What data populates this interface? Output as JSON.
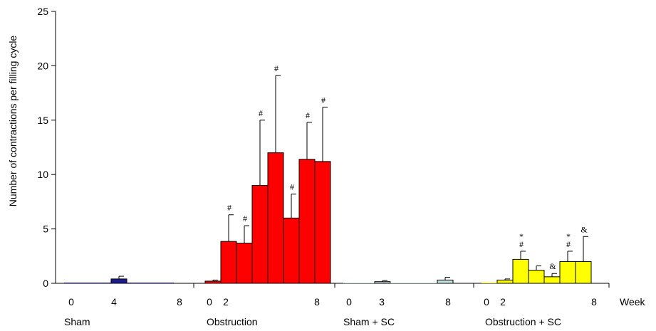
{
  "chart_data": {
    "type": "bar",
    "ylabel": "Number of contractions per filling cycle",
    "xlabel": "Week",
    "ylim": [
      0,
      25
    ],
    "y_ticks": [
      "0",
      "5",
      "10",
      "15",
      "20",
      "25"
    ],
    "grid": false,
    "colors": {
      "Sham": "#1c1c8c",
      "Obstruction": "#ff0000",
      "Sham + SC": "#c8e4e4",
      "Obstruction + SC": "#ffff00"
    },
    "groups": [
      {
        "name": "Sham",
        "week_labels": [
          "0",
          "4",
          "8"
        ],
        "bars": [
          {
            "value": 0.0,
            "error": 0.0,
            "annotation": ""
          },
          {
            "value": 0.0,
            "error": 0.0,
            "annotation": ""
          },
          {
            "value": 0.0,
            "error": 0.0,
            "annotation": ""
          },
          {
            "value": 0.4,
            "error": 0.25,
            "annotation": ""
          },
          {
            "value": 0.0,
            "error": 0.0,
            "annotation": ""
          },
          {
            "value": 0.0,
            "error": 0.0,
            "annotation": ""
          },
          {
            "value": 0.0,
            "error": 0.0,
            "annotation": ""
          }
        ]
      },
      {
        "name": "Obstruction",
        "week_labels": [
          "0",
          "2",
          "8"
        ],
        "bars": [
          {
            "value": 0.2,
            "error": 0.1,
            "annotation": ""
          },
          {
            "value": 3.85,
            "error": 2.45,
            "annotation": "#"
          },
          {
            "value": 3.7,
            "error": 1.6,
            "annotation": "#"
          },
          {
            "value": 9.0,
            "error": 6.0,
            "annotation": "#"
          },
          {
            "value": 12.0,
            "error": 7.1,
            "annotation": "#"
          },
          {
            "value": 6.0,
            "error": 2.2,
            "annotation": "#"
          },
          {
            "value": 11.4,
            "error": 3.4,
            "annotation": "#"
          },
          {
            "value": 11.2,
            "error": 5.0,
            "annotation": "#"
          }
        ]
      },
      {
        "name": "Sham + SC",
        "week_labels": [
          "0",
          "3",
          "8"
        ],
        "bars": [
          {
            "value": 0.0,
            "error": 0.0,
            "annotation": ""
          },
          {
            "value": 0.0,
            "error": 0.0,
            "annotation": ""
          },
          {
            "value": 0.15,
            "error": 0.1,
            "annotation": ""
          },
          {
            "value": 0.0,
            "error": 0.0,
            "annotation": ""
          },
          {
            "value": 0.0,
            "error": 0.0,
            "annotation": ""
          },
          {
            "value": 0.0,
            "error": 0.0,
            "annotation": ""
          },
          {
            "value": 0.3,
            "error": 0.25,
            "annotation": ""
          }
        ]
      },
      {
        "name": "Obstruction + SC",
        "week_labels": [
          "0",
          "2",
          "8"
        ],
        "bars": [
          {
            "value": 0.0,
            "error": 0.0,
            "annotation": ""
          },
          {
            "value": 0.3,
            "error": 0.1,
            "annotation": ""
          },
          {
            "value": 2.2,
            "error": 0.75,
            "annotation": "#*"
          },
          {
            "value": 1.2,
            "error": 0.4,
            "annotation": ""
          },
          {
            "value": 0.6,
            "error": 0.3,
            "annotation": "&"
          },
          {
            "value": 2.0,
            "error": 0.95,
            "annotation": "#*"
          },
          {
            "value": 2.0,
            "error": 2.3,
            "annotation": "&"
          }
        ]
      }
    ]
  }
}
